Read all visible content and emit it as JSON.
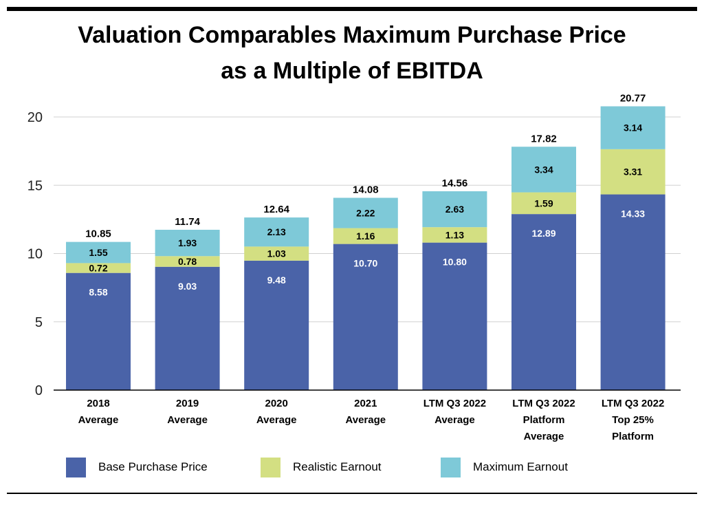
{
  "title_lines": [
    "Valuation Comparables Maximum Purchase Price",
    "as a Multiple of EBITDA"
  ],
  "colors": {
    "base": "#4a63a8",
    "realistic": "#d3df82",
    "maximum": "#7ec9d8",
    "grid": "#d0d0d0",
    "axis": "#000000"
  },
  "chart_data": {
    "type": "bar",
    "stacked": true,
    "categories": [
      [
        "2018",
        "Average"
      ],
      [
        "2019",
        "Average"
      ],
      [
        "2020",
        "Average"
      ],
      [
        "2021",
        "Average"
      ],
      [
        "LTM Q3 2022",
        "Average"
      ],
      [
        "LTM Q3 2022",
        "Platform",
        "Average"
      ],
      [
        "LTM Q3 2022",
        "Top 25%",
        "Platform"
      ]
    ],
    "series": [
      {
        "name": "Base Purchase Price",
        "values": [
          8.58,
          9.03,
          9.48,
          10.7,
          10.8,
          12.89,
          14.33
        ],
        "labels": [
          "8.58",
          "9.03",
          "9.48",
          "10.70",
          "10.80",
          "12.89",
          "14.33"
        ]
      },
      {
        "name": "Realistic Earnout",
        "values": [
          0.72,
          0.78,
          1.03,
          1.16,
          1.13,
          1.59,
          3.31
        ],
        "labels": [
          "0.72",
          "0.78",
          "1.03",
          "1.16",
          "1.13",
          "1.59",
          "3.31"
        ]
      },
      {
        "name": "Maximum Earnout",
        "values": [
          1.55,
          1.93,
          2.13,
          2.22,
          2.63,
          3.34,
          3.14
        ],
        "labels": [
          "1.55",
          "1.93",
          "2.13",
          "2.22",
          "2.63",
          "3.34",
          "3.14"
        ]
      }
    ],
    "totals": [
      "10.85",
      "11.74",
      "12.64",
      "14.08",
      "14.56",
      "17.82",
      "20.77"
    ],
    "y_ticks": [
      "0",
      "5",
      "10",
      "15",
      "20"
    ],
    "ylim": [
      0,
      20.77
    ],
    "grid": true,
    "legend_position": "bottom"
  }
}
